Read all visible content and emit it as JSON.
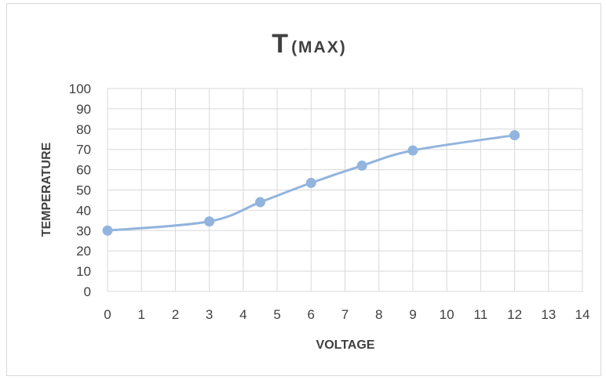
{
  "chart_data": {
    "type": "line",
    "title_main": "T",
    "title_sub": "(MAX)",
    "xlabel": "VOLTAGE",
    "ylabel": "TEMPERATURE",
    "xlim": [
      0,
      14
    ],
    "ylim": [
      0,
      100
    ],
    "x_ticks": [
      0,
      1,
      2,
      3,
      4,
      5,
      6,
      7,
      8,
      9,
      10,
      11,
      12,
      13,
      14
    ],
    "y_ticks": [
      0,
      10,
      20,
      30,
      40,
      50,
      60,
      70,
      80,
      90,
      100
    ],
    "grid": true,
    "smooth": true,
    "series": [
      {
        "x": [
          0,
          3,
          4.5,
          6,
          7.5,
          9,
          12
        ],
        "y": [
          30,
          34.5,
          44,
          53.5,
          62,
          69.5,
          77
        ]
      }
    ],
    "colors": {
      "series": "#92b4de",
      "grid": "#d9d9d9",
      "text": "#404040"
    }
  }
}
